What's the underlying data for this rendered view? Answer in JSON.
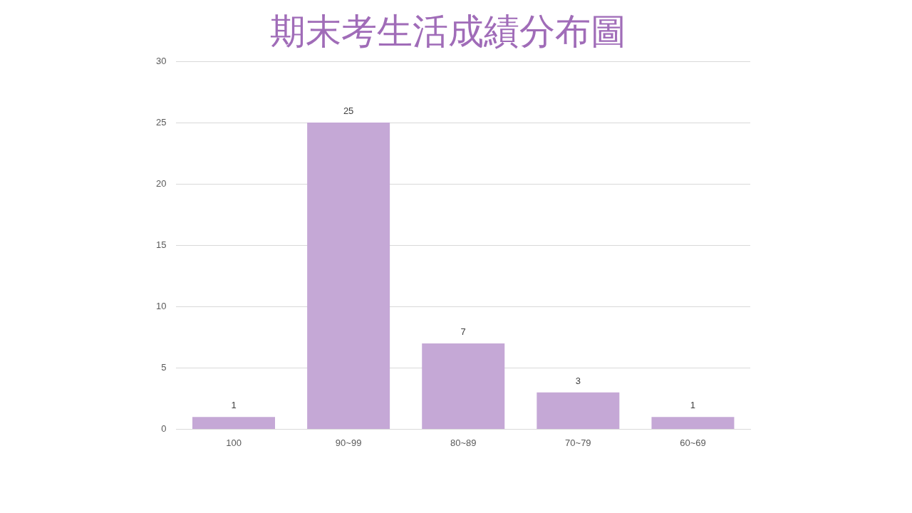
{
  "chart_data": {
    "type": "bar",
    "title": "期末考生活成績分布圖",
    "categories": [
      "100",
      "90~99",
      "80~89",
      "70~79",
      "60~69"
    ],
    "values": [
      1,
      25,
      7,
      3,
      1
    ],
    "color": "#c5a8d6",
    "ylim": [
      0,
      30
    ],
    "yticks": [
      0,
      5,
      10,
      15,
      20,
      25,
      30
    ],
    "grid": "y",
    "legend": false,
    "data_labels": true
  }
}
